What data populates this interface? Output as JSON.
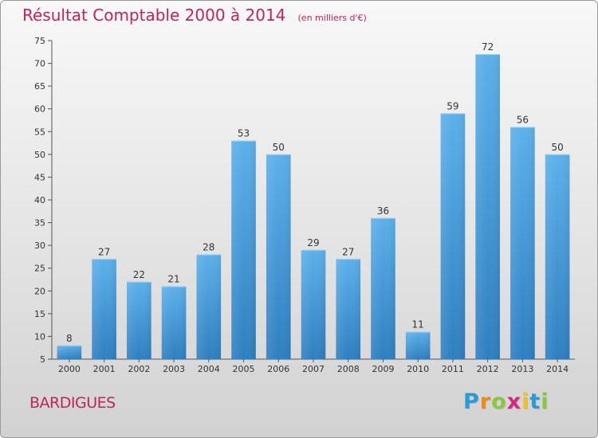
{
  "title": "Résultat Comptable 2000 à 2014",
  "unit_note": "(en milliers d'€)",
  "commune": "BARDIGUES",
  "logo": {
    "text": "Proxiti",
    "letters": [
      {
        "ch": "P",
        "color": "#2a9ad8"
      },
      {
        "ch": "r",
        "color": "#f08a1c"
      },
      {
        "ch": "o",
        "color": "#8cc63f"
      },
      {
        "ch": "x",
        "color": "#d8267e"
      },
      {
        "ch": "i",
        "color": "#f2c21c"
      },
      {
        "ch": "t",
        "color": "#2a9ad8"
      },
      {
        "ch": "i",
        "color": "#8cc63f"
      }
    ]
  },
  "colors": {
    "title": "#c0245c",
    "bar_top": "#5db0ea",
    "bar_bottom": "#2f7fc0"
  },
  "chart_data": {
    "type": "bar",
    "categories": [
      "2000",
      "2001",
      "2002",
      "2003",
      "2004",
      "2005",
      "2006",
      "2007",
      "2008",
      "2009",
      "2010",
      "2011",
      "2012",
      "2013",
      "2014"
    ],
    "values": [
      8,
      27,
      22,
      21,
      28,
      53,
      50,
      29,
      27,
      36,
      11,
      59,
      72,
      56,
      50
    ],
    "y_ticks": [
      5,
      10,
      15,
      20,
      25,
      30,
      35,
      40,
      45,
      50,
      55,
      60,
      65,
      70,
      75
    ],
    "ylim": [
      5,
      75
    ],
    "grid": false,
    "data_labels": true
  }
}
